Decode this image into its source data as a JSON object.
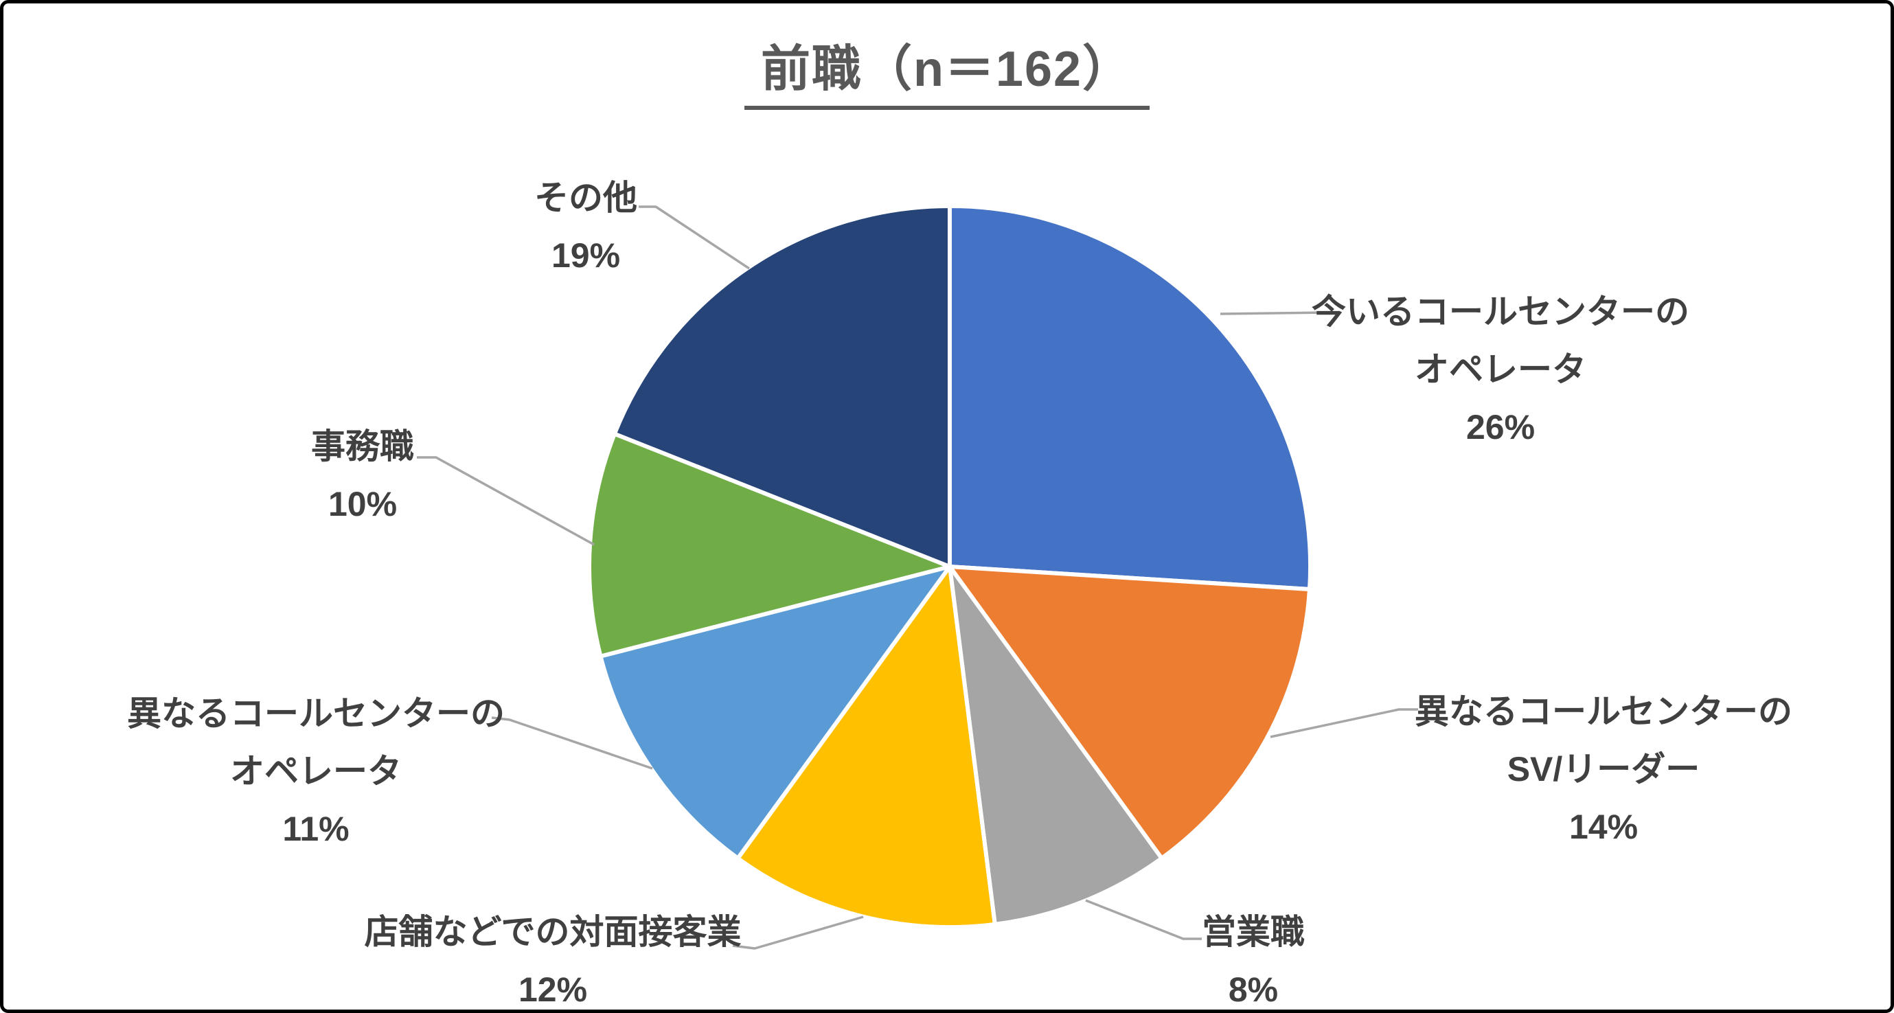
{
  "title": {
    "text": "前職（n＝162）"
  },
  "chart_data": {
    "type": "pie",
    "title": "前職（n＝162）",
    "sample_size_n": 162,
    "unit": "percent",
    "direction": "clockwise",
    "start_angle_deg": 0,
    "legend_position": "none",
    "labels_style": "outside-with-leader-lines",
    "categories": [
      "今いるコールセンターのオペレータ",
      "異なるコールセンターのSV/リーダー",
      "営業職",
      "店舗などでの対面接客業",
      "異なるコールセンターのオペレータ",
      "事務職",
      "その他"
    ],
    "values": [
      26,
      14,
      8,
      12,
      11,
      10,
      19
    ],
    "colors": [
      "#4472C4",
      "#ED7D31",
      "#A5A5A5",
      "#FFC000",
      "#5B9BD5",
      "#70AD47",
      "#264478"
    ]
  },
  "slices": [
    {
      "key": "current-cc-operator",
      "category": "今いるコールセンターのオペレータ",
      "value": 26,
      "label_lines": [
        "今いるコールセンターの",
        "オペレータ",
        "26%"
      ],
      "color": "#4472C4"
    },
    {
      "key": "different-cc-sv-leader",
      "category": "異なるコールセンターのSV/リーダー",
      "value": 14,
      "label_lines": [
        "異なるコールセンターの",
        "SV/リーダー",
        "14%"
      ],
      "color": "#ED7D31"
    },
    {
      "key": "sales",
      "category": "営業職",
      "value": 8,
      "label_lines": [
        "営業職",
        "8%"
      ],
      "color": "#A5A5A5"
    },
    {
      "key": "retail-customer-service",
      "category": "店舗などでの対面接客業",
      "value": 12,
      "label_lines": [
        "店舗などでの対面接客業",
        "12%"
      ],
      "color": "#FFC000"
    },
    {
      "key": "different-cc-operator",
      "category": "異なるコールセンターのオペレータ",
      "value": 11,
      "label_lines": [
        "異なるコールセンターの",
        "オペレータ",
        "11%"
      ],
      "color": "#5B9BD5"
    },
    {
      "key": "office-work",
      "category": "事務職",
      "value": 10,
      "label_lines": [
        "事務職",
        "10%"
      ],
      "color": "#70AD47"
    },
    {
      "key": "other",
      "category": "その他",
      "value": 19,
      "label_lines": [
        "その他",
        "19%"
      ],
      "color": "#264478"
    }
  ],
  "style": {
    "background": "#FFFFFF",
    "border_color": "#000000",
    "title_color": "#595959",
    "label_color": "#404040",
    "leader_line_color": "#A6A6A6",
    "slice_separator_color": "#FFFFFF"
  }
}
